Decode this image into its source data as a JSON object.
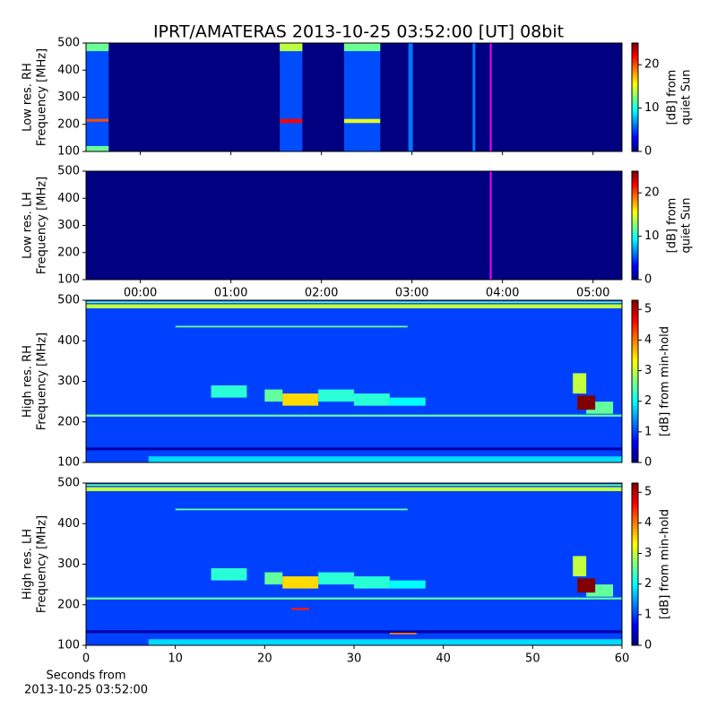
{
  "title": "IPRT/AMATERAS 2013-10-25 03:52:00 [UT]   08bit",
  "chart_data": [
    {
      "type": "heatmap",
      "ylabel": [
        "Low res. RH",
        "Frequency [MHz]"
      ],
      "xlim": [
        -0.6,
        5.32
      ],
      "ylim": [
        100,
        500
      ],
      "yticks": [
        100,
        200,
        300,
        400,
        500
      ],
      "background": 0,
      "cells": [
        {
          "x": [
            -0.6,
            -0.35
          ],
          "y": [
            100,
            500
          ],
          "value": 5
        },
        {
          "x": [
            1.54,
            1.79
          ],
          "y": [
            100,
            500
          ],
          "value": 5
        },
        {
          "x": [
            2.25,
            2.65
          ],
          "y": [
            100,
            500
          ],
          "value": 5
        },
        {
          "x": [
            2.96,
            3.01
          ],
          "y": [
            100,
            500
          ],
          "value": 6
        },
        {
          "x": [
            3.67,
            3.7
          ],
          "y": [
            100,
            500
          ],
          "value": 6
        },
        {
          "x": [
            -0.6,
            -0.35
          ],
          "y": [
            210,
            220
          ],
          "value": 20
        },
        {
          "x": [
            1.54,
            1.79
          ],
          "y": [
            205,
            220
          ],
          "value": 22
        },
        {
          "x": [
            2.25,
            2.65
          ],
          "y": [
            205,
            220
          ],
          "value": 15
        },
        {
          "x": [
            -0.6,
            -0.35
          ],
          "y": [
            470,
            500
          ],
          "value": 12
        },
        {
          "x": [
            1.54,
            1.79
          ],
          "y": [
            470,
            500
          ],
          "value": 14
        },
        {
          "x": [
            2.25,
            2.65
          ],
          "y": [
            470,
            500
          ],
          "value": 12
        },
        {
          "x": [
            -0.6,
            -0.35
          ],
          "y": [
            100,
            120
          ],
          "value": 12
        }
      ],
      "marker": {
        "x": 3.87,
        "color": "#ff00ff"
      },
      "colorbar": {
        "label": [
          "[dB] from",
          "quiet Sun"
        ],
        "lim": [
          0,
          25
        ],
        "ticks": [
          0,
          10,
          20
        ]
      }
    },
    {
      "type": "heatmap",
      "ylabel": [
        "Low res. LH",
        "Frequency [MHz]"
      ],
      "xlim": [
        -0.6,
        5.32
      ],
      "ylim": [
        100,
        500
      ],
      "yticks": [
        100,
        200,
        300,
        400,
        500
      ],
      "xticks": [
        {
          "value": 0,
          "label": "00:00"
        },
        {
          "value": 1,
          "label": "01:00"
        },
        {
          "value": 2,
          "label": "02:00"
        },
        {
          "value": 3,
          "label": "03:00"
        },
        {
          "value": 4,
          "label": "04:00"
        },
        {
          "value": 5,
          "label": "05:00"
        }
      ],
      "background": 0,
      "cells": [],
      "marker": {
        "x": 3.87,
        "color": "#ff00ff"
      },
      "colorbar": {
        "label": [
          "[dB] from",
          "quiet Sun"
        ],
        "lim": [
          0,
          25
        ],
        "ticks": [
          0,
          10,
          20
        ]
      }
    },
    {
      "type": "heatmap",
      "ylabel": [
        "High res. RH",
        "Frequency [MHz]"
      ],
      "xlim": [
        0,
        60
      ],
      "ylim": [
        100,
        500
      ],
      "yticks": [
        100,
        200,
        300,
        400,
        500
      ],
      "background": 1,
      "cells": [
        {
          "x": [
            0,
            60
          ],
          "y": [
            480,
            490
          ],
          "value": 3
        },
        {
          "x": [
            0,
            60
          ],
          "y": [
            493,
            497
          ],
          "value": 2.5
        },
        {
          "x": [
            10,
            36
          ],
          "y": [
            433,
            437
          ],
          "value": 2.5
        },
        {
          "x": [
            0,
            60
          ],
          "y": [
            213,
            218
          ],
          "value": 2.5
        },
        {
          "x": [
            20,
            22
          ],
          "y": [
            250,
            280
          ],
          "value": 2.5
        },
        {
          "x": [
            14,
            18
          ],
          "y": [
            260,
            290
          ],
          "value": 2.2
        },
        {
          "x": [
            22,
            26
          ],
          "y": [
            240,
            270
          ],
          "value": 3.5
        },
        {
          "x": [
            26,
            30
          ],
          "y": [
            250,
            280
          ],
          "value": 2.2
        },
        {
          "x": [
            30,
            34
          ],
          "y": [
            240,
            270
          ],
          "value": 2.2
        },
        {
          "x": [
            34,
            38
          ],
          "y": [
            240,
            260
          ],
          "value": 2
        },
        {
          "x": [
            54.5,
            56
          ],
          "y": [
            270,
            320
          ],
          "value": 3
        },
        {
          "x": [
            56,
            59
          ],
          "y": [
            220,
            250
          ],
          "value": 2.5
        },
        {
          "x": [
            55,
            57
          ],
          "y": [
            230,
            265
          ],
          "value": 5.3
        },
        {
          "x": [
            0,
            60
          ],
          "y": [
            130,
            137
          ],
          "value": 0.2
        },
        {
          "x": [
            7,
            60
          ],
          "y": [
            100,
            115
          ],
          "value": 1.8
        }
      ],
      "colorbar": {
        "label": [
          "[dB] from min-hold"
        ],
        "lim": [
          0,
          5.3
        ],
        "ticks": [
          0,
          1,
          2,
          3,
          4,
          5
        ]
      }
    },
    {
      "type": "heatmap",
      "ylabel": [
        "High res. LH",
        "Frequency [MHz]"
      ],
      "xlabel": [
        "Seconds from",
        "2013-10-25 03:52:00"
      ],
      "xlim": [
        0,
        60
      ],
      "ylim": [
        100,
        500
      ],
      "yticks": [
        100,
        200,
        300,
        400,
        500
      ],
      "xticks": [
        0,
        10,
        20,
        30,
        40,
        50,
        60
      ],
      "background": 1,
      "cells": [
        {
          "x": [
            0,
            60
          ],
          "y": [
            480,
            490
          ],
          "value": 3
        },
        {
          "x": [
            0,
            60
          ],
          "y": [
            493,
            497
          ],
          "value": 2.5
        },
        {
          "x": [
            10,
            36
          ],
          "y": [
            433,
            437
          ],
          "value": 2.5
        },
        {
          "x": [
            0,
            60
          ],
          "y": [
            213,
            218
          ],
          "value": 2.5
        },
        {
          "x": [
            20,
            22
          ],
          "y": [
            250,
            280
          ],
          "value": 2.5
        },
        {
          "x": [
            14,
            18
          ],
          "y": [
            260,
            290
          ],
          "value": 2.2
        },
        {
          "x": [
            22,
            26
          ],
          "y": [
            240,
            270
          ],
          "value": 3.5
        },
        {
          "x": [
            26,
            30
          ],
          "y": [
            250,
            280
          ],
          "value": 2.2
        },
        {
          "x": [
            30,
            34
          ],
          "y": [
            240,
            270
          ],
          "value": 2.2
        },
        {
          "x": [
            34,
            38
          ],
          "y": [
            240,
            260
          ],
          "value": 2
        },
        {
          "x": [
            54.5,
            56
          ],
          "y": [
            270,
            320
          ],
          "value": 3
        },
        {
          "x": [
            56,
            59
          ],
          "y": [
            220,
            250
          ],
          "value": 2.5
        },
        {
          "x": [
            55,
            57
          ],
          "y": [
            230,
            265
          ],
          "value": 5.3
        },
        {
          "x": [
            0,
            60
          ],
          "y": [
            130,
            137
          ],
          "value": 0.2
        },
        {
          "x": [
            7,
            60
          ],
          "y": [
            100,
            115
          ],
          "value": 1.8
        },
        {
          "x": [
            23,
            25
          ],
          "y": [
            187,
            192
          ],
          "value": 4.5
        },
        {
          "x": [
            34,
            37
          ],
          "y": [
            127,
            131
          ],
          "value": 4
        }
      ],
      "colorbar": {
        "label": [
          "[dB] from min-hold"
        ],
        "lim": [
          0,
          5.3
        ],
        "ticks": [
          0,
          1,
          2,
          3,
          4,
          5
        ]
      }
    }
  ]
}
